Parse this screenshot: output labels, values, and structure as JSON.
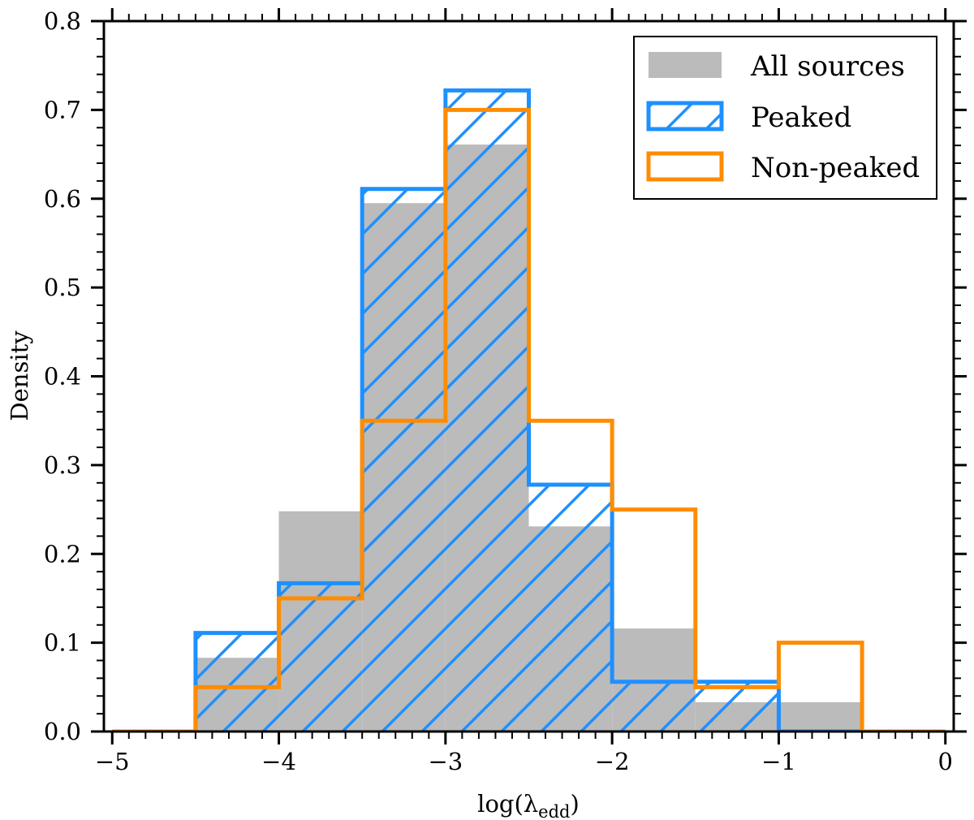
{
  "chart_data": {
    "type": "histogram",
    "title": "",
    "xlabel": "log(λedd)",
    "xlabel_main": "log(λ",
    "xlabel_sub": "edd",
    "xlabel_close": ")",
    "ylabel": "Density",
    "xlim": [
      -5.05,
      0.05
    ],
    "ylim": [
      0,
      0.8
    ],
    "xticks": [
      -5,
      -4,
      -3,
      -2,
      -1,
      0
    ],
    "xtick_labels": [
      "−5",
      "−4",
      "−3",
      "−2",
      "−1",
      "0"
    ],
    "yticks": [
      0,
      0.1,
      0.2,
      0.3,
      0.4,
      0.5,
      0.6,
      0.7,
      0.8
    ],
    "ytick_labels": [
      "0.0",
      "0.1",
      "0.2",
      "0.3",
      "0.4",
      "0.5",
      "0.6",
      "0.7",
      "0.8"
    ],
    "bin_edges": [
      -5.0,
      -4.5,
      -4.0,
      -3.5,
      -3.0,
      -2.5,
      -2.0,
      -1.5,
      -1.0,
      -0.5,
      0.0
    ],
    "series": [
      {
        "name": "All sources",
        "style": "filled",
        "color": "#bbbbbb",
        "values": [
          0.0,
          0.083,
          0.248,
          0.595,
          0.661,
          0.231,
          0.116,
          0.033,
          0.033,
          0.0
        ]
      },
      {
        "name": "Peaked",
        "style": "hatched-step",
        "color": "#1e90ff",
        "values": [
          0.0,
          0.111,
          0.167,
          0.611,
          0.722,
          0.278,
          0.056,
          0.056,
          0.0,
          0.0
        ]
      },
      {
        "name": "Non-peaked",
        "style": "step",
        "color": "#ff8c00",
        "values": [
          0.0,
          0.05,
          0.15,
          0.35,
          0.7,
          0.35,
          0.25,
          0.05,
          0.1,
          0.0
        ]
      }
    ],
    "legend": {
      "position": "top-right",
      "entries": [
        "All sources",
        "Peaked",
        "Non-peaked"
      ]
    }
  }
}
